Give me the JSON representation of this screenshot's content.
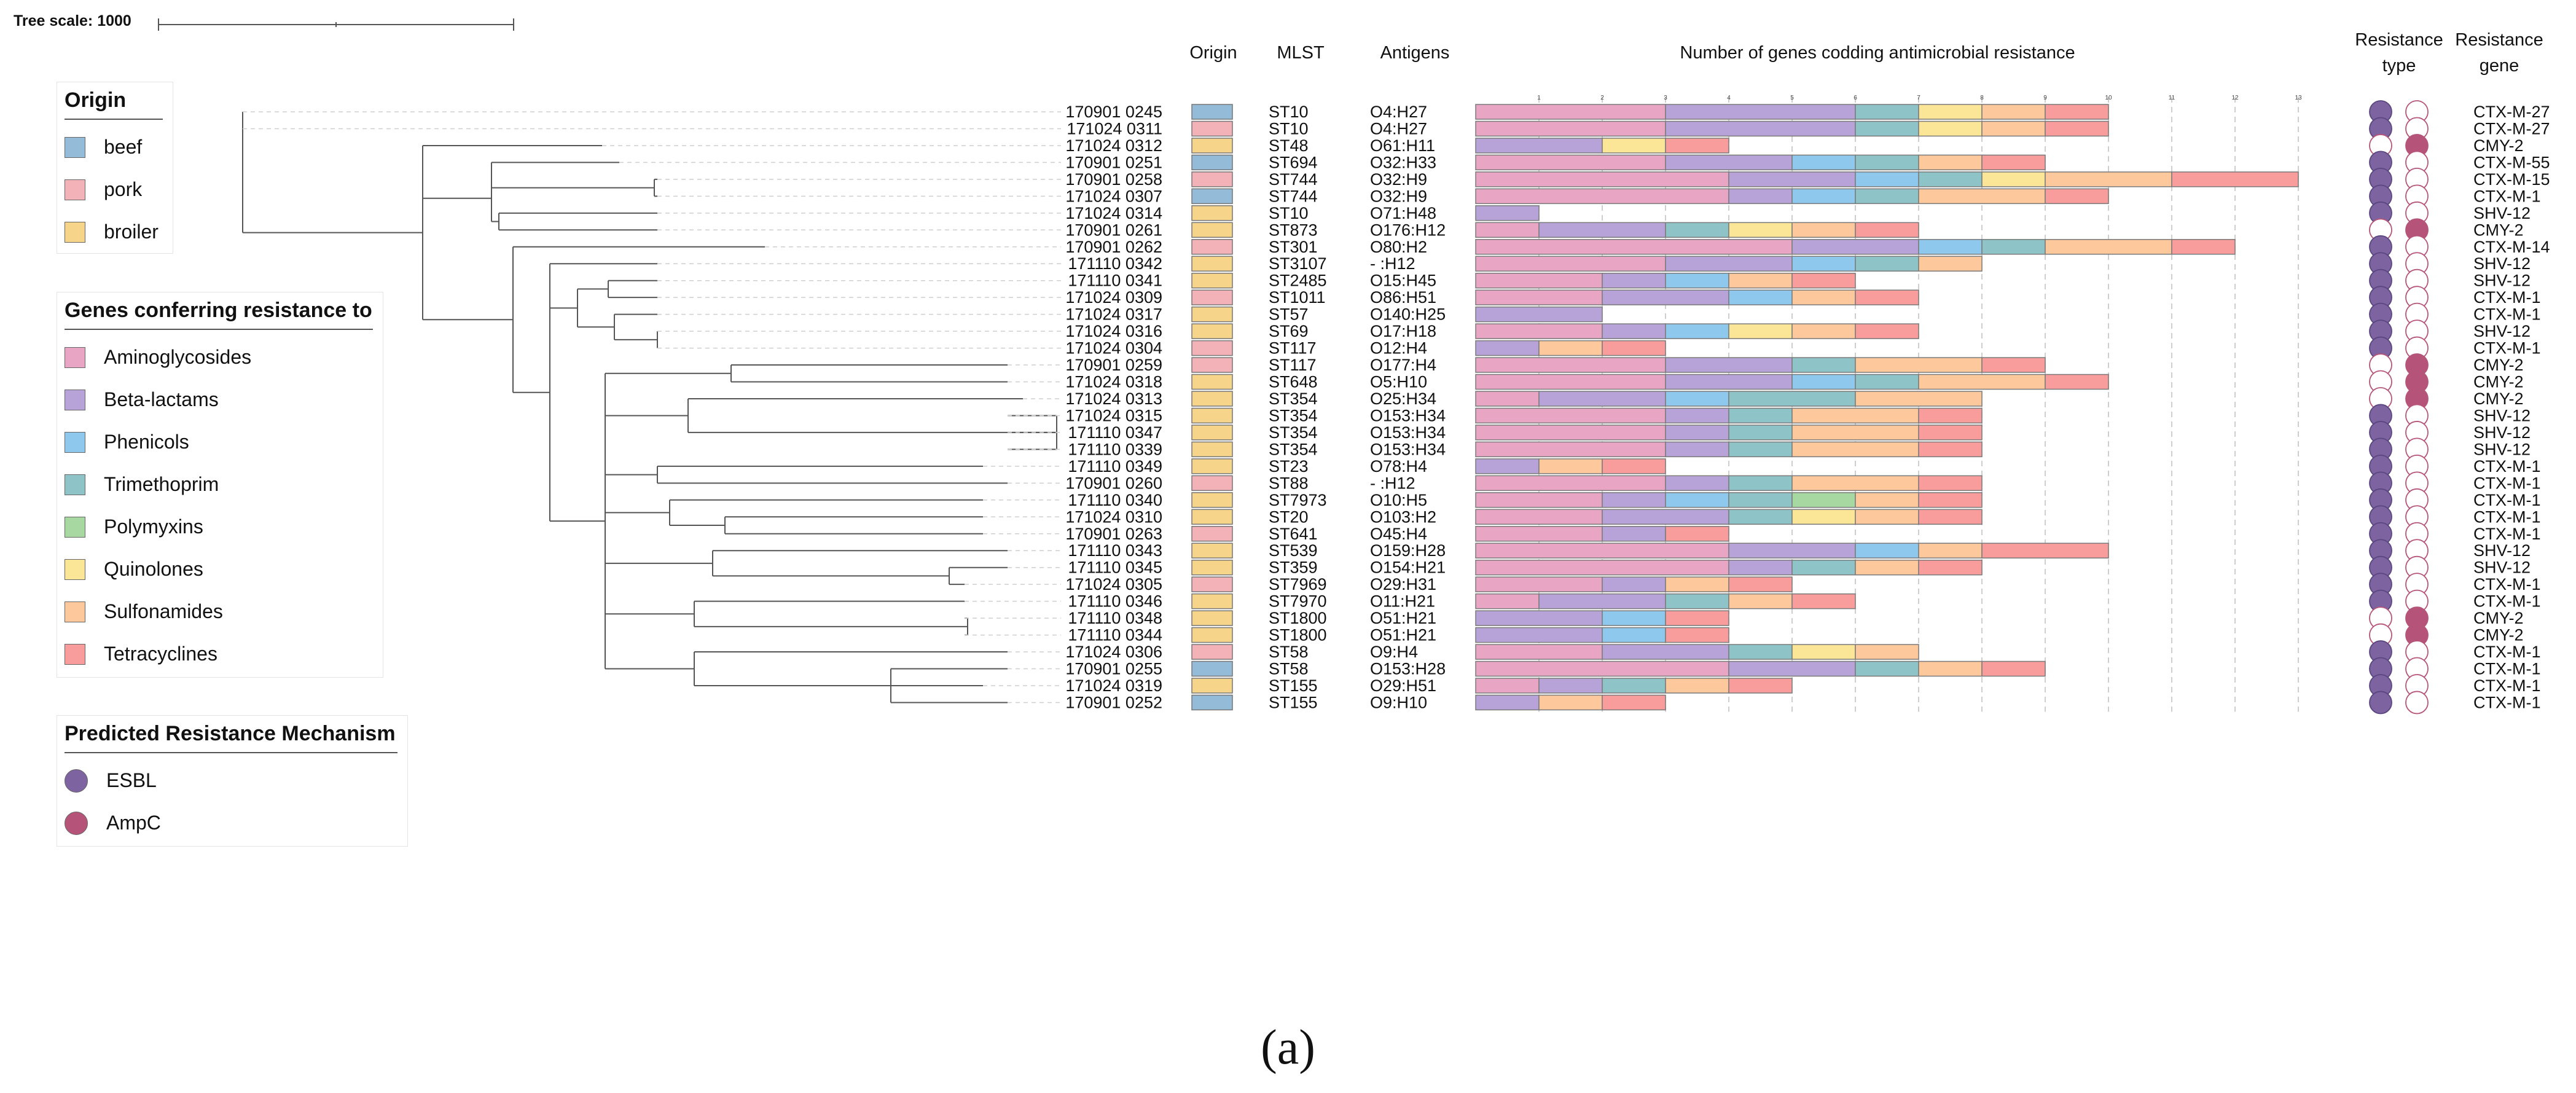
{
  "tree_scale_label": "Tree scale: 1000",
  "caption": "(a)",
  "legends": {
    "origin": {
      "title": "Origin",
      "items": [
        {
          "label": "beef",
          "color": "#94bbd8"
        },
        {
          "label": "pork",
          "color": "#f3b1b8"
        },
        {
          "label": "broiler",
          "color": "#f6d58a"
        }
      ]
    },
    "genes": {
      "title": "Genes conferring resistance to",
      "items": [
        {
          "label": "Aminoglycosides",
          "color": "#e9a6c4"
        },
        {
          "label": "Beta-lactams",
          "color": "#b7a3d7"
        },
        {
          "label": "Phenicols",
          "color": "#8ec8ec"
        },
        {
          "label": "Trimethoprim",
          "color": "#8ec3c7"
        },
        {
          "label": "Polymyxins",
          "color": "#a8d8a1"
        },
        {
          "label": "Quinolones",
          "color": "#fbe596"
        },
        {
          "label": "Sulfonamides",
          "color": "#fdc89c"
        },
        {
          "label": "Tetracyclines",
          "color": "#f89c9c"
        }
      ]
    },
    "mechanism": {
      "title": "Predicted Resistance Mechanism",
      "items": [
        {
          "label": "ESBL",
          "color": "#7d63a0"
        },
        {
          "label": "AmpC",
          "color": "#b55478"
        }
      ]
    }
  },
  "chart_data": {
    "type": "table",
    "title": "Number of genes codding antimicrobial resistance",
    "columns": {
      "origin": "Origin",
      "mlst": "MLST",
      "antigens": "Antigens",
      "genes": "Number of genes codding antimicrobial resistance",
      "res_type": "Resistance type",
      "res_gene": "Resistance gene"
    },
    "gene_categories": [
      "Aminoglycosides",
      "Beta-lactams",
      "Phenicols",
      "Trimethoprim",
      "Polymyxins",
      "Quinolones",
      "Sulfonamides",
      "Tetracyclines"
    ],
    "gene_axis": {
      "min": 0,
      "max": 13,
      "ticks": [
        "1",
        "2",
        "3",
        "4",
        "5",
        "6",
        "7",
        "8",
        "9",
        "10",
        "11",
        "12",
        "13"
      ]
    },
    "rows": [
      {
        "isolate": "170901 0245",
        "origin": "beef",
        "mlst": "ST10",
        "antigens": "O4:H27",
        "genes": [
          3,
          3,
          0,
          1,
          0,
          1,
          1,
          1
        ],
        "esbl": true,
        "ampc": false,
        "gene": "CTX-M-27"
      },
      {
        "isolate": "171024 0311",
        "origin": "pork",
        "mlst": "ST10",
        "antigens": "O4:H27",
        "genes": [
          3,
          3,
          0,
          1,
          0,
          1,
          1,
          1
        ],
        "esbl": true,
        "ampc": false,
        "gene": "CTX-M-27"
      },
      {
        "isolate": "171024 0312",
        "origin": "broiler",
        "mlst": "ST48",
        "antigens": "O61:H11",
        "genes": [
          0,
          2,
          0,
          0,
          0,
          1,
          0,
          1
        ],
        "esbl": false,
        "ampc": true,
        "gene": "CMY-2"
      },
      {
        "isolate": "170901 0251",
        "origin": "beef",
        "mlst": "ST694",
        "antigens": "O32:H33",
        "genes": [
          3,
          2,
          1,
          1,
          0,
          0,
          1,
          1
        ],
        "esbl": true,
        "ampc": false,
        "gene": "CTX-M-55"
      },
      {
        "isolate": "170901 0258",
        "origin": "pork",
        "mlst": "ST744",
        "antigens": "O32:H9",
        "genes": [
          4,
          2,
          1,
          1,
          0,
          1,
          2,
          2
        ],
        "esbl": true,
        "ampc": false,
        "gene": "CTX-M-15"
      },
      {
        "isolate": "171024 0307",
        "origin": "beef",
        "mlst": "ST744",
        "antigens": "O32:H9",
        "genes": [
          4,
          1,
          1,
          1,
          0,
          0,
          2,
          1
        ],
        "esbl": true,
        "ampc": false,
        "gene": "CTX-M-1"
      },
      {
        "isolate": "171024 0314",
        "origin": "broiler",
        "mlst": "ST10",
        "antigens": "O71:H48",
        "genes": [
          0,
          1,
          0,
          0,
          0,
          0,
          0,
          0
        ],
        "esbl": true,
        "ampc": false,
        "gene": "SHV-12"
      },
      {
        "isolate": "170901 0261",
        "origin": "broiler",
        "mlst": "ST873",
        "antigens": "O176:H12",
        "genes": [
          1,
          2,
          0,
          1,
          0,
          1,
          1,
          1
        ],
        "esbl": false,
        "ampc": true,
        "gene": "CMY-2"
      },
      {
        "isolate": "170901 0262",
        "origin": "pork",
        "mlst": "ST301",
        "antigens": "O80:H2",
        "genes": [
          5,
          2,
          1,
          1,
          0,
          0,
          2,
          1
        ],
        "esbl": true,
        "ampc": false,
        "gene": "CTX-M-14"
      },
      {
        "isolate": "171110 0342",
        "origin": "broiler",
        "mlst": "ST3107",
        "antigens": "- :H12",
        "genes": [
          3,
          2,
          1,
          1,
          0,
          0,
          1,
          0
        ],
        "esbl": true,
        "ampc": false,
        "gene": "SHV-12"
      },
      {
        "isolate": "171110 0341",
        "origin": "broiler",
        "mlst": "ST2485",
        "antigens": "O15:H45",
        "genes": [
          2,
          1,
          1,
          0,
          0,
          0,
          1,
          1
        ],
        "esbl": true,
        "ampc": false,
        "gene": "SHV-12"
      },
      {
        "isolate": "171024 0309",
        "origin": "pork",
        "mlst": "ST1011",
        "antigens": "O86:H51",
        "genes": [
          2,
          2,
          1,
          0,
          0,
          0,
          1,
          1
        ],
        "esbl": true,
        "ampc": false,
        "gene": "CTX-M-1"
      },
      {
        "isolate": "171024 0317",
        "origin": "broiler",
        "mlst": "ST57",
        "antigens": "O140:H25",
        "genes": [
          0,
          2,
          0,
          0,
          0,
          0,
          0,
          0
        ],
        "esbl": true,
        "ampc": false,
        "gene": "CTX-M-1"
      },
      {
        "isolate": "171024 0316",
        "origin": "broiler",
        "mlst": "ST69",
        "antigens": "O17:H18",
        "genes": [
          2,
          1,
          1,
          0,
          0,
          1,
          1,
          1
        ],
        "esbl": true,
        "ampc": false,
        "gene": "SHV-12"
      },
      {
        "isolate": "171024 0304",
        "origin": "pork",
        "mlst": "ST117",
        "antigens": "O12:H4",
        "genes": [
          0,
          1,
          0,
          0,
          0,
          0,
          1,
          1
        ],
        "esbl": true,
        "ampc": false,
        "gene": "CTX-M-1"
      },
      {
        "isolate": "170901 0259",
        "origin": "pork",
        "mlst": "ST117",
        "antigens": "O177:H4",
        "genes": [
          3,
          2,
          0,
          1,
          0,
          0,
          2,
          1
        ],
        "esbl": false,
        "ampc": true,
        "gene": "CMY-2"
      },
      {
        "isolate": "171024 0318",
        "origin": "broiler",
        "mlst": "ST648",
        "antigens": "O5:H10",
        "genes": [
          3,
          2,
          1,
          1,
          0,
          0,
          2,
          1
        ],
        "esbl": false,
        "ampc": true,
        "gene": "CMY-2"
      },
      {
        "isolate": "171024 0313",
        "origin": "broiler",
        "mlst": "ST354",
        "antigens": "O25:H34",
        "genes": [
          1,
          2,
          1,
          2,
          0,
          0,
          2,
          0
        ],
        "esbl": false,
        "ampc": true,
        "gene": "CMY-2"
      },
      {
        "isolate": "171024 0315",
        "origin": "broiler",
        "mlst": "ST354",
        "antigens": "O153:H34",
        "genes": [
          3,
          1,
          0,
          1,
          0,
          0,
          2,
          1
        ],
        "esbl": true,
        "ampc": false,
        "gene": "SHV-12"
      },
      {
        "isolate": "171110 0347",
        "origin": "broiler",
        "mlst": "ST354",
        "antigens": "O153:H34",
        "genes": [
          3,
          1,
          0,
          1,
          0,
          0,
          2,
          1
        ],
        "esbl": true,
        "ampc": false,
        "gene": "SHV-12"
      },
      {
        "isolate": "171110 0339",
        "origin": "broiler",
        "mlst": "ST354",
        "antigens": "O153:H34",
        "genes": [
          3,
          1,
          0,
          1,
          0,
          0,
          2,
          1
        ],
        "esbl": true,
        "ampc": false,
        "gene": "SHV-12"
      },
      {
        "isolate": "171110 0349",
        "origin": "broiler",
        "mlst": "ST23",
        "antigens": "O78:H4",
        "genes": [
          0,
          1,
          0,
          0,
          0,
          0,
          1,
          1
        ],
        "esbl": true,
        "ampc": false,
        "gene": "CTX-M-1"
      },
      {
        "isolate": "170901 0260",
        "origin": "pork",
        "mlst": "ST88",
        "antigens": "- :H12",
        "genes": [
          3,
          1,
          0,
          1,
          0,
          0,
          2,
          1
        ],
        "esbl": true,
        "ampc": false,
        "gene": "CTX-M-1"
      },
      {
        "isolate": "171110 0340",
        "origin": "broiler",
        "mlst": "ST7973",
        "antigens": "O10:H5",
        "genes": [
          2,
          1,
          1,
          1,
          1,
          0,
          1,
          1
        ],
        "esbl": true,
        "ampc": false,
        "gene": "CTX-M-1"
      },
      {
        "isolate": "171024 0310",
        "origin": "broiler",
        "mlst": "ST20",
        "antigens": "O103:H2",
        "genes": [
          2,
          2,
          0,
          1,
          0,
          1,
          1,
          1
        ],
        "esbl": true,
        "ampc": false,
        "gene": "CTX-M-1"
      },
      {
        "isolate": "170901 0263",
        "origin": "pork",
        "mlst": "ST641",
        "antigens": "O45:H4",
        "genes": [
          2,
          1,
          0,
          0,
          0,
          0,
          0,
          1
        ],
        "esbl": true,
        "ampc": false,
        "gene": "CTX-M-1"
      },
      {
        "isolate": "171110 0343",
        "origin": "broiler",
        "mlst": "ST539",
        "antigens": "O159:H28",
        "genes": [
          4,
          2,
          1,
          0,
          0,
          0,
          1,
          2
        ],
        "esbl": true,
        "ampc": false,
        "gene": "SHV-12"
      },
      {
        "isolate": "171110 0345",
        "origin": "broiler",
        "mlst": "ST359",
        "antigens": "O154:H21",
        "genes": [
          4,
          1,
          0,
          1,
          0,
          0,
          1,
          1
        ],
        "esbl": true,
        "ampc": false,
        "gene": "SHV-12"
      },
      {
        "isolate": "171024 0305",
        "origin": "pork",
        "mlst": "ST7969",
        "antigens": "O29:H31",
        "genes": [
          2,
          1,
          0,
          0,
          0,
          0,
          1,
          1
        ],
        "esbl": true,
        "ampc": false,
        "gene": "CTX-M-1"
      },
      {
        "isolate": "171110 0346",
        "origin": "broiler",
        "mlst": "ST7970",
        "antigens": "O11:H21",
        "genes": [
          1,
          2,
          0,
          1,
          0,
          0,
          1,
          1
        ],
        "esbl": true,
        "ampc": false,
        "gene": "CTX-M-1"
      },
      {
        "isolate": "171110 0348",
        "origin": "broiler",
        "mlst": "ST1800",
        "antigens": "O51:H21",
        "genes": [
          0,
          2,
          1,
          0,
          0,
          0,
          0,
          1
        ],
        "esbl": false,
        "ampc": true,
        "gene": "CMY-2"
      },
      {
        "isolate": "171110 0344",
        "origin": "broiler",
        "mlst": "ST1800",
        "antigens": "O51:H21",
        "genes": [
          0,
          2,
          1,
          0,
          0,
          0,
          0,
          1
        ],
        "esbl": false,
        "ampc": true,
        "gene": "CMY-2"
      },
      {
        "isolate": "171024 0306",
        "origin": "pork",
        "mlst": "ST58",
        "antigens": "O9:H4",
        "genes": [
          2,
          2,
          0,
          1,
          0,
          1,
          1,
          0
        ],
        "esbl": true,
        "ampc": false,
        "gene": "CTX-M-1"
      },
      {
        "isolate": "170901 0255",
        "origin": "beef",
        "mlst": "ST58",
        "antigens": "O153:H28",
        "genes": [
          4,
          2,
          0,
          1,
          0,
          0,
          1,
          1
        ],
        "esbl": true,
        "ampc": false,
        "gene": "CTX-M-1"
      },
      {
        "isolate": "171024 0319",
        "origin": "broiler",
        "mlst": "ST155",
        "antigens": "O29:H51",
        "genes": [
          1,
          1,
          0,
          1,
          0,
          0,
          1,
          1
        ],
        "esbl": true,
        "ampc": false,
        "gene": "CTX-M-1"
      },
      {
        "isolate": "170901 0252",
        "origin": "beef",
        "mlst": "ST155",
        "antigens": "O9:H10",
        "genes": [
          0,
          1,
          0,
          0,
          0,
          0,
          1,
          1
        ],
        "esbl": true,
        "ampc": false,
        "gene": "CTX-M-1"
      }
    ]
  }
}
